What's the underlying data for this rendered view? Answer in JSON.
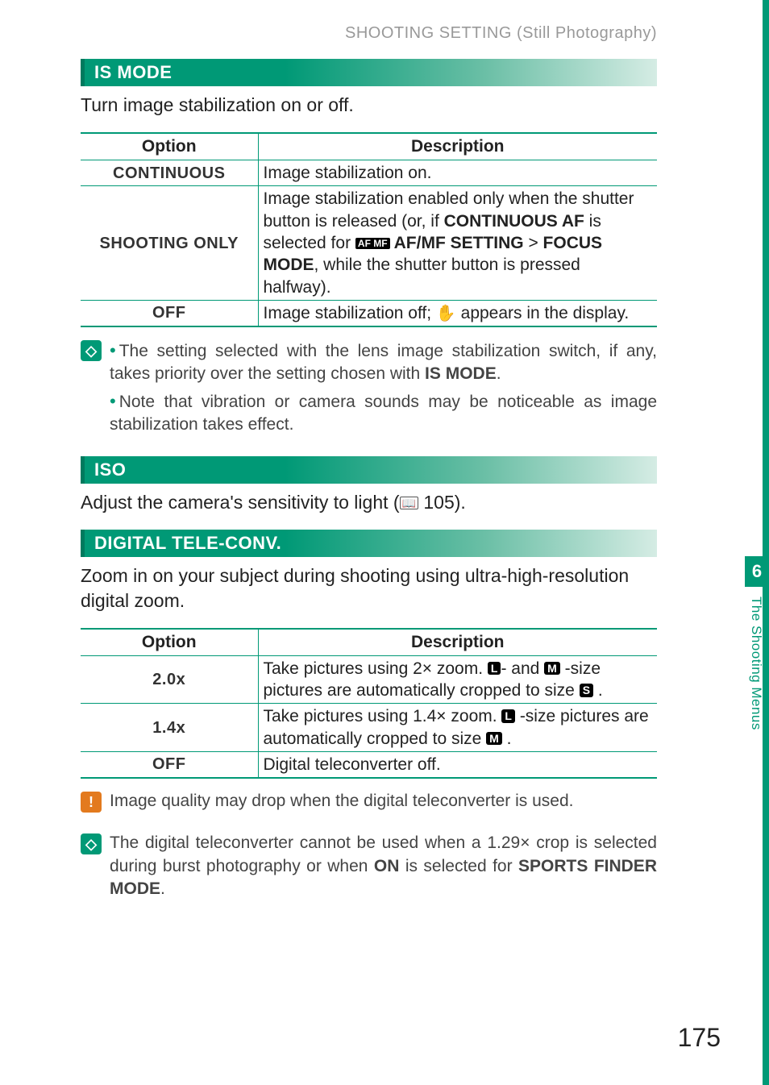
{
  "header": {
    "breadcrumb": "SHOOTING SETTING (Still Photography)"
  },
  "section_is": {
    "title": "IS MODE",
    "intro": "Turn image stabilization on or off.",
    "table": {
      "head_option": "Option",
      "head_desc": "Description",
      "rows": [
        {
          "opt": "CONTINUOUS",
          "desc_plain": "Image stabilization on."
        },
        {
          "opt": "SHOOTING ONLY"
        },
        {
          "opt": "OFF"
        }
      ],
      "shooting_only": {
        "pre": "Image stabilization enabled only when the shutter button is released (or, if ",
        "b1": "CONTINUOUS AF",
        "mid1": " is selected for ",
        "chip": "AF\nMF",
        "b2": " AF/MF SETTING",
        "gt": " > ",
        "b3": "FOCUS MODE",
        "post": ", while the shutter button is pressed halfway)."
      },
      "off": {
        "pre": "Image stabilization off; ",
        "icon": "✋",
        "post": " appears in the display."
      }
    },
    "note": {
      "line1a": "The setting selected with the lens image stabilization switch, if any, takes priority over the setting chosen with ",
      "line1b": "IS MODE",
      "line1c": ".",
      "line2": "Note that vibration or camera sounds may be noticeable as image stabilization takes effect."
    }
  },
  "section_iso": {
    "title": "ISO",
    "intro_pre": "Adjust the camera's sensitivity to light (",
    "ref_icon": "📖",
    "ref_num": " 105).",
    "intro_post": ""
  },
  "section_dtc": {
    "title": "DIGITAL TELE-CONV.",
    "intro": "Zoom in on your subject during shooting using ultra-high-resolution digital zoom.",
    "table": {
      "head_option": "Option",
      "head_desc": "Description",
      "r1_opt": "2.0x",
      "r1a": "Take pictures using 2× zoom. ",
      "chip_L": "L",
      "r1b": "- and ",
      "chip_M": "M",
      "r1c": " -size pictures are automatically cropped to size ",
      "chip_S": "S",
      "r1d": " .",
      "r2_opt": "1.4x",
      "r2a": "Take pictures using 1.4× zoom. ",
      "r2b": " -size pictures are automatically cropped to size ",
      "r2c": " .",
      "r3_opt": "OFF",
      "r3": "Digital teleconverter off."
    },
    "warn": "Image quality may drop when the digital teleconverter is used.",
    "note2a": "The digital teleconverter cannot be used when a 1.29× crop is selected during burst photography or when ",
    "note2b": "ON",
    "note2c": " is selected for ",
    "note2d": "SPORTS FINDER MODE",
    "note2e": "."
  },
  "sidebar": {
    "num": "6",
    "label": "The Shooting Menus"
  },
  "page_number": "175",
  "colors": {
    "brand": "#009976",
    "orange": "#e37a1e",
    "text": "#333333",
    "muted": "#999999"
  }
}
